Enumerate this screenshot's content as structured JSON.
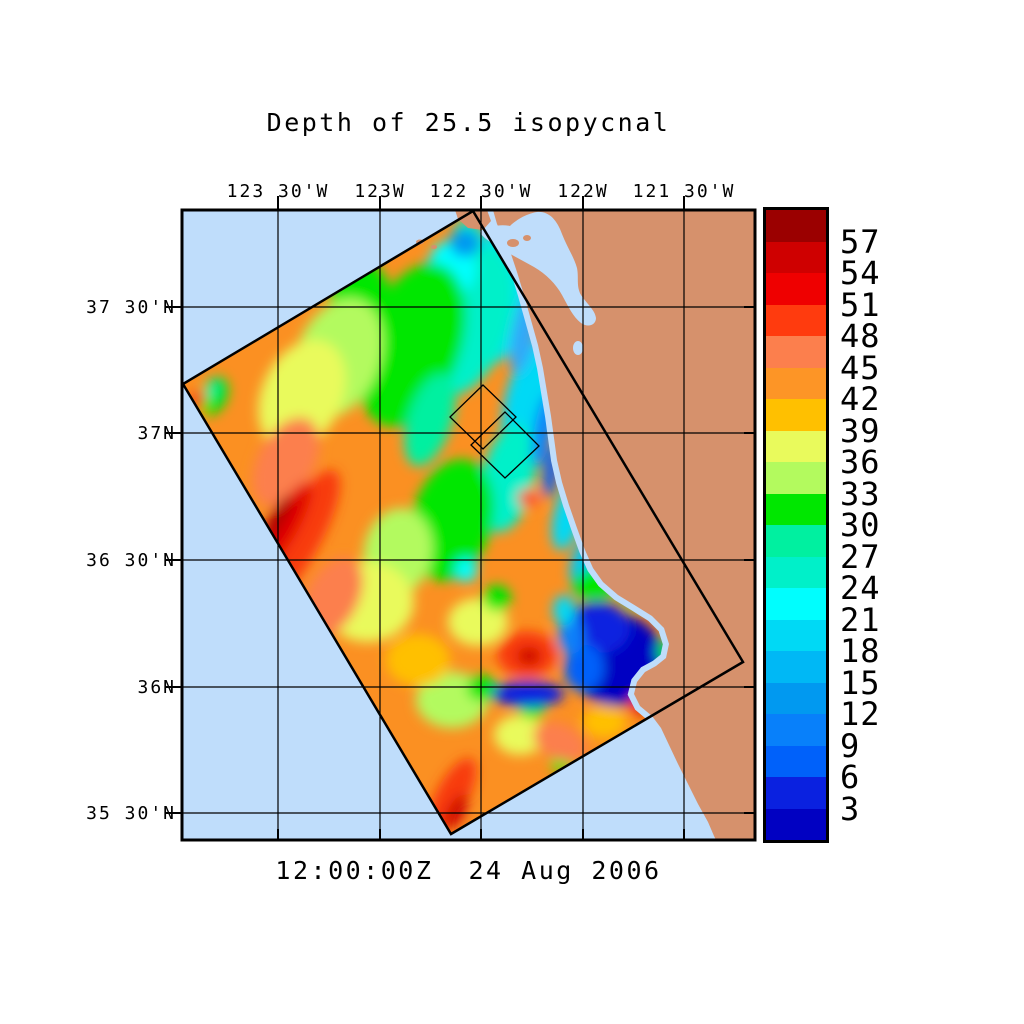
{
  "title": "Depth of 25.5 isopycnal",
  "timestamp": "12:00:00Z  24 Aug 2006",
  "axes": {
    "top": [
      "123 30'W",
      "123W",
      "122 30'W",
      "122W",
      "121 30'W"
    ],
    "left": [
      "37 30'N",
      "37N",
      "36 30'N",
      "36N",
      "35 30'N"
    ]
  },
  "colorbar": {
    "labels": [
      "57",
      "54",
      "51",
      "48",
      "45",
      "42",
      "39",
      "36",
      "33",
      "30",
      "27",
      "24",
      "21",
      "18",
      "15",
      "12",
      "9",
      "6",
      "3"
    ],
    "colors_top_to_bottom": [
      "#9B0000",
      "#CF0000",
      "#EF0000",
      "#FF3B0E",
      "#FC7F4D",
      "#FD9526",
      "#FFC000",
      "#E9FA5C",
      "#B3FA5E",
      "#00E700",
      "#00F0A0",
      "#00F0C9",
      "#00FEFE",
      "#00D9F5",
      "#00B8F5",
      "#0199F0",
      "#0880FA",
      "#0061FA",
      "#0A21E0",
      "#0101C2"
    ]
  },
  "map": {
    "ocean_color": "#BFDDFB",
    "land_color": "#D6916C",
    "region": "California coast from San Francisco Bay to south of Monterey Bay",
    "overlays": [
      "rotated rectangular model swath outline",
      "two small diamond subdomain outlines near 37N 122 30'W"
    ]
  },
  "chart_data": {
    "type": "heatmap",
    "title": "Depth of 25.5 isopycnal",
    "timestamp": "12:00:00Z  24 Aug 2006",
    "x_ticks": [
      "123 30'W",
      "123W",
      "122 30'W",
      "122W",
      "121 30'W"
    ],
    "y_ticks": [
      "37 30'N",
      "37N",
      "36 30'N",
      "36N",
      "35 30'N"
    ],
    "colorbar_values": [
      57,
      54,
      51,
      48,
      45,
      42,
      39,
      36,
      33,
      30,
      27,
      24,
      21,
      18,
      15,
      12,
      9,
      6,
      3
    ],
    "value_step": 3,
    "palette_low_to_high": [
      "#0101C2",
      "#0A21E0",
      "#0061FA",
      "#0880FA",
      "#0199F0",
      "#00B8F5",
      "#00D9F5",
      "#00FEFE",
      "#00F0C9",
      "#00F0A0",
      "#00E700",
      "#B3FA5E",
      "#E9FA5C",
      "#FFC000",
      "#FD9526",
      "#FC7F4D",
      "#FF3B0E",
      "#EF0000",
      "#CF0000",
      "#9B0000"
    ],
    "features": [
      "shallow band (3-21, blues/cyans) hugging the coast from San Francisco down past Santa Cruz",
      "deepest blue patch (<3-6) filling Monterey Bay near 36 50'N 122W",
      "green band (27-33) offshore of the cyan coastal band in the northern half of the swath",
      "broad orange field (42-48) over the southwestern half of the swath",
      "red maxima (51-57) along the southwest swath edge near 36 30'N 123 30'W, at center-south near 36 10'N 122 40'W, and at the bottom swath corner",
      "legend boundaries labeled every 3 from 3 to 57"
    ]
  }
}
